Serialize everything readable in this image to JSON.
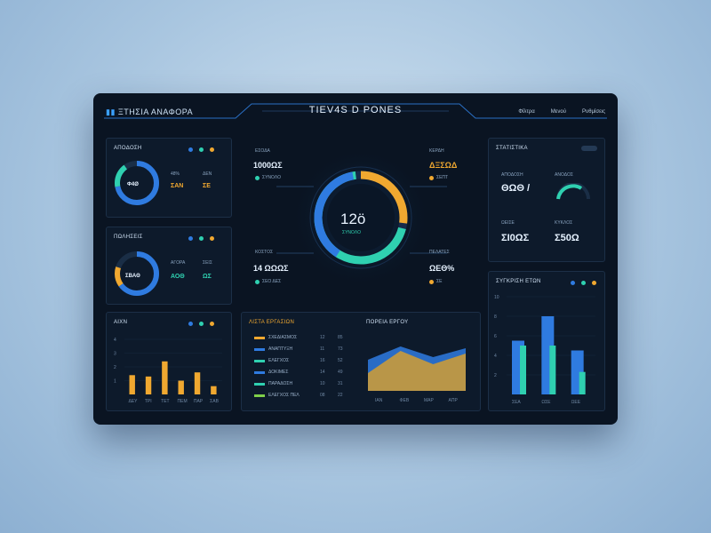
{
  "header": {
    "brand": "ΞΤΗΣΙΑ ΑΝΑΦΟΡΑ",
    "title": "TIEV4S D PONES",
    "nav": [
      "Φίλτρα",
      "Μενού",
      "Ρυθμίσεις"
    ]
  },
  "left_panels": [
    {
      "title": "ΑΠΟΔΟΣΗ",
      "big": "Φ4Ø",
      "legend": [
        "48%",
        "ΔΕΝ"
      ],
      "values": [
        "ΣΑΝ",
        "ΣΕ"
      ],
      "ring_fill": 0.72
    },
    {
      "title": "ΠΩΛΗΣΕΙΣ",
      "big": "ΣΒΑΘ",
      "legend": [
        "ΑΓΟΡΑ",
        "ΣΕΙΣ"
      ],
      "values": [
        "ΑΟΘ",
        "ΩΣ"
      ],
      "ring_fill": 0.65
    }
  ],
  "center": {
    "ring_value": "12ö",
    "ring_label": "ΣΥΝΟΛΟ",
    "corner_tl_label": "ΕΣΟΔΑ",
    "corner_tl_value": "1000ΩΣ",
    "corner_tl_sub": "ΣΥΝΟΛΟ",
    "corner_tr_label": "ΚΕΡΔΗ",
    "corner_tr_value": "ΔΞΣΩΔ",
    "corner_tr_sub": "ΣΕΠΤ",
    "corner_bl_label": "ΚΟΣΤΟΣ",
    "corner_bl_value": "14 ΩΩΩΣ",
    "corner_bl_sub": "ΣΕΟ ΔΕΣ",
    "corner_br_label": "ΠΕΛΑΤΕΣ",
    "corner_br_value": "ΩΕΘ%",
    "corner_br_sub": "ΣΕ",
    "ring_parts": {
      "yellow": 0.27,
      "blue": 0.38
    }
  },
  "right_stats": {
    "title": "ΣΤΑΤΙΣΤΙΚΑ",
    "cards": [
      {
        "label": "ΑΠΟΔΟΣΗ",
        "value": "ΘΩΘ / "
      },
      {
        "label": "ΑΝΟΔΟΣ",
        "value": ""
      },
      {
        "label": "ΩΕΙΣΕ",
        "value": "ΣΙ0ΩΣ"
      },
      {
        "label": "ΚΥΚΛΟΣ",
        "value": "Σ50Ω"
      }
    ]
  },
  "bottom_left": {
    "title": "ΑΙΧΝ",
    "y_ticks": [
      "4",
      "3",
      "2",
      "1"
    ],
    "categories": [
      "ΔΕΥ",
      "ΤΡΙ",
      "ΤΕΤ",
      "ΠΕΜ",
      "ΠΑΡ",
      "ΣΑΒ"
    ],
    "chart_data": {
      "type": "bar",
      "categories": [
        "ΔΕΥ",
        "ΤΡΙ",
        "ΤΕΤ",
        "ΠΕΜ",
        "ΠΑΡ",
        "ΣΑΒ"
      ],
      "values": [
        1.4,
        1.3,
        2.4,
        1.0,
        1.6,
        0.6
      ],
      "ylim": [
        0,
        4
      ]
    }
  },
  "bottom_center": {
    "title": "ΛΙΣΤΑ ΕΡΓΑΣΙΩΝ",
    "chart_title": "ΠΟΡΕΙΑ ΕΡΓΟΥ",
    "rows": [
      {
        "label": "ΣΧΕΔΙΑΣΜΟΣ",
        "a": "12",
        "b": "85",
        "color": "#f0a830"
      },
      {
        "label": "ΑΝΑΠΤΥΞΗ",
        "a": "11",
        "b": "73",
        "color": "#2f7be0"
      },
      {
        "label": "ΕΛΕΓΧΟΣ",
        "a": "16",
        "b": "52",
        "color": "#2fd0b0"
      },
      {
        "label": "ΔΟΚΙΜΕΣ",
        "a": "14",
        "b": "49",
        "color": "#2f7be0"
      },
      {
        "label": "ΠΑΡΑΔΟΣΗ",
        "a": "10",
        "b": "31",
        "color": "#2fd0b0"
      },
      {
        "label": "ΕΛΕΓΧΟΣ ΠΕΛ",
        "a": "08",
        "b": "22",
        "color": "#7fcf4a"
      }
    ],
    "area_x": [
      "ΙΑΝ",
      "ΦΕΒ",
      "ΜΑΡ",
      "ΑΠΡ"
    ],
    "chart_data": {
      "type": "area",
      "x": [
        "ΙΑΝ",
        "ΦΕΒ",
        "ΜΑΡ",
        "ΑΠΡ"
      ],
      "series": [
        {
          "values": [
            20,
            45,
            30,
            42
          ]
        },
        {
          "values": [
            35,
            50,
            38,
            48
          ]
        }
      ]
    }
  },
  "bottom_right": {
    "title": "ΣΥΓΚΡΙΣΗ ΕΤΩΝ",
    "y_ticks": [
      "10",
      "8",
      "6",
      "4",
      "2"
    ],
    "categories": [
      "ΣΕΑ",
      "ΩΣΕ",
      "ΩΕΕ"
    ],
    "chart_data": {
      "type": "bar",
      "categories": [
        "ΣΕΑ",
        "ΩΣΕ",
        "ΩΕΕ"
      ],
      "series": [
        {
          "values": [
            5.5,
            8.0,
            4.5
          ]
        },
        {
          "values": [
            5.0,
            5.0,
            2.3
          ]
        }
      ],
      "ylim": [
        0,
        10
      ]
    }
  },
  "colors": {
    "blue": "#2f7be0",
    "teal": "#2fd0b0",
    "yellow": "#f0a830",
    "panel": "#0d1a2b",
    "bg": "#0a1422"
  }
}
